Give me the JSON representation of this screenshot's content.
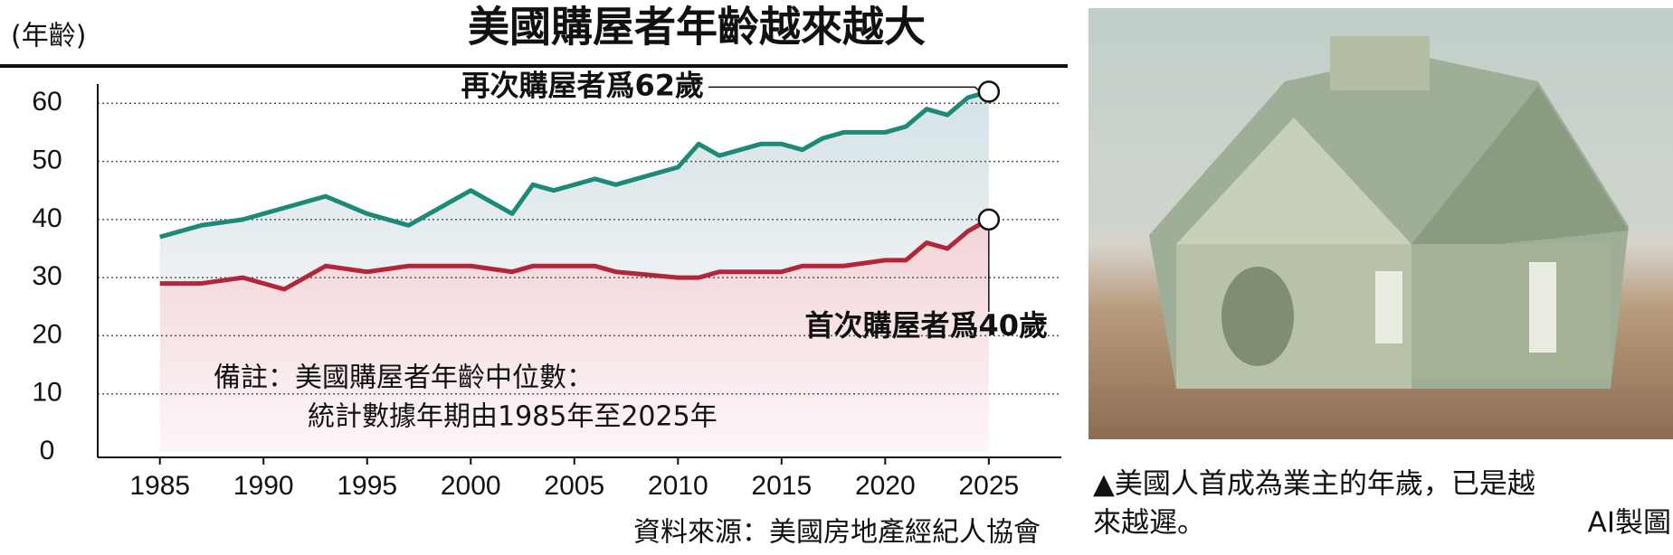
{
  "chart_data": {
    "type": "line",
    "title": "美國購屋者年齡越來越大",
    "y_unit_label": "(年齡)",
    "x": [
      1985,
      1987,
      1989,
      1991,
      1993,
      1995,
      1997,
      2000,
      2002,
      2003,
      2004,
      2006,
      2007,
      2010,
      2011,
      2012,
      2014,
      2015,
      2016,
      2017,
      2018,
      2020,
      2021,
      2022,
      2023,
      2024,
      2025
    ],
    "series": [
      {
        "name": "再次購屋者",
        "color": "#1b8a77",
        "values": [
          37,
          39,
          40,
          42,
          44,
          41,
          39,
          45,
          41,
          46,
          45,
          47,
          46,
          49,
          53,
          51,
          53,
          53,
          52,
          54,
          55,
          55,
          56,
          59,
          58,
          61,
          62
        ]
      },
      {
        "name": "首次購屋者",
        "color": "#b3263a",
        "values": [
          29,
          29,
          30,
          28,
          32,
          31,
          32,
          32,
          31,
          32,
          32,
          32,
          31,
          30,
          30,
          31,
          31,
          31,
          32,
          32,
          32,
          33,
          33,
          36,
          35,
          38,
          40
        ]
      }
    ],
    "xlim": [
      1982,
      2028.5
    ],
    "xticks": [
      1985,
      1990,
      1995,
      2000,
      2005,
      2010,
      2015,
      2020,
      2025
    ],
    "ylim": [
      0,
      63
    ],
    "yticks": [
      0,
      10,
      20,
      30,
      40,
      50,
      60
    ],
    "grid": true,
    "annotations": [
      "再次購屋者爲62歲",
      "首次購屋者爲40歲"
    ],
    "note": [
      "備註：美國購屋者年齡中位數：",
      "統計數據年期由1985年至2025年"
    ],
    "source": "資料來源：美國房地產經紀人協會"
  },
  "caption": {
    "text_line1": "▲美國人首成為業主的年歲，已是越",
    "text_line2": "來越遲。",
    "credit": "AI製圖"
  }
}
